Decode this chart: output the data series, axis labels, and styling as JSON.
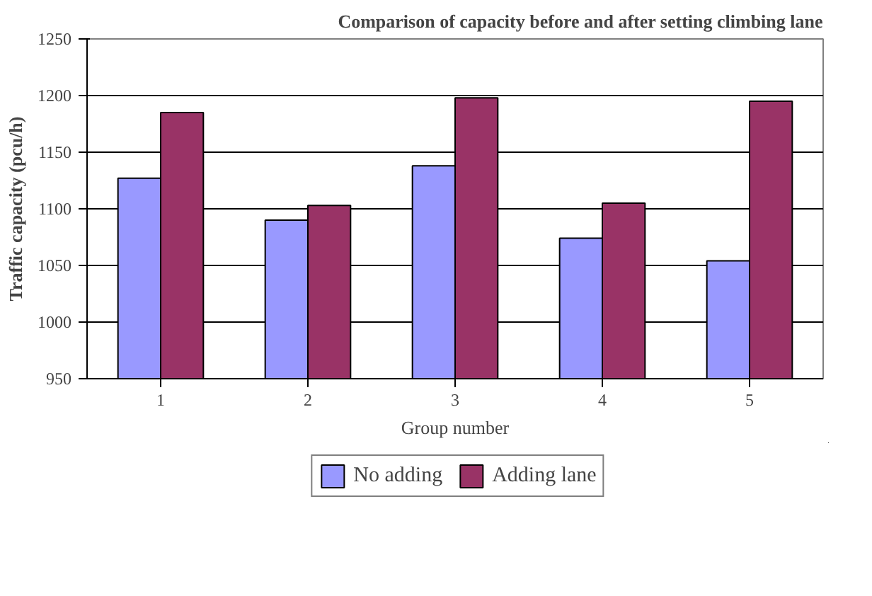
{
  "chart_data": {
    "type": "bar",
    "title": "Comparison of capacity before and after setting climbing lane",
    "xlabel": "Group number",
    "ylabel": "Traffic capacity (pcu/h)",
    "categories": [
      "1",
      "2",
      "3",
      "4",
      "5"
    ],
    "series": [
      {
        "name": "No adding",
        "color": "#9999ff",
        "values": [
          1127,
          1090,
          1138,
          1074,
          1054
        ]
      },
      {
        "name": "Adding lane",
        "color": "#993366",
        "values": [
          1185,
          1103,
          1198,
          1105,
          1195
        ]
      }
    ],
    "ylim": [
      950,
      1250
    ],
    "yticks": [
      950,
      1000,
      1050,
      1100,
      1150,
      1200,
      1250
    ],
    "grid": "y",
    "legend": "bottom"
  }
}
